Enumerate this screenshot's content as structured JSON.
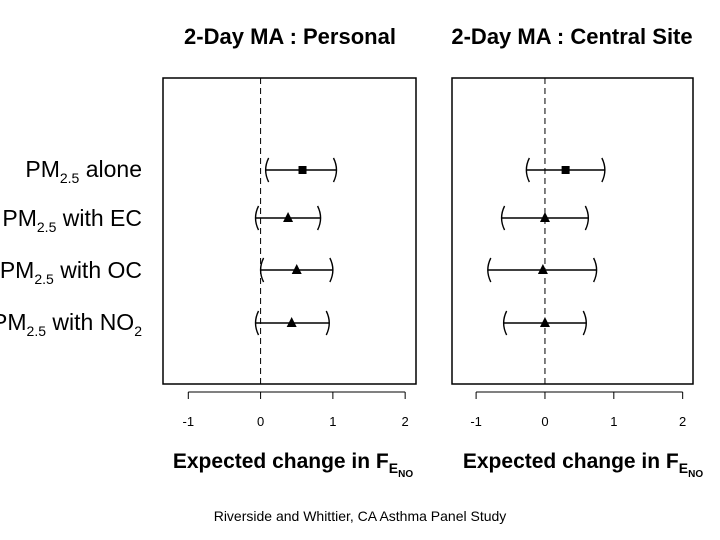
{
  "caption": "Riverside and Whittier, CA Asthma Panel Study",
  "row_labels": [
    {
      "main": "PM",
      "sub": "2.5",
      "rest": " alone",
      "sub2": ""
    },
    {
      "main": "PM",
      "sub": "2.5",
      "rest": " with EC",
      "sub2": ""
    },
    {
      "main": "PM",
      "sub": "2.5",
      "rest": " with OC",
      "sub2": ""
    },
    {
      "main": "PM",
      "sub": "2.5",
      "rest": " with NO",
      "sub2": "2"
    }
  ],
  "chart_data": [
    {
      "type": "forest",
      "title": "2-Day MA : Personal",
      "xlabel": {
        "main": "Expected change in F",
        "sub": "E",
        "subsub": "NO"
      },
      "xlim": [
        -1.35,
        2.15
      ],
      "xticks": [
        -1,
        0,
        1,
        2
      ],
      "reference_line": 0,
      "series": [
        {
          "name": "PM2.5 alone",
          "estimate": 0.58,
          "lower": 0.07,
          "upper": 1.05,
          "marker": "square"
        },
        {
          "name": "PM2.5 with EC",
          "estimate": 0.38,
          "lower": -0.07,
          "upper": 0.83,
          "marker": "triangle"
        },
        {
          "name": "PM2.5 with OC",
          "estimate": 0.5,
          "lower": 0.0,
          "upper": 1.0,
          "marker": "triangle"
        },
        {
          "name": "PM2.5 with NO2",
          "estimate": 0.43,
          "lower": -0.07,
          "upper": 0.95,
          "marker": "triangle"
        }
      ]
    },
    {
      "type": "forest",
      "title": "2-Day MA : Central Site",
      "xlabel": {
        "main": "Expected change in F",
        "sub": "E",
        "subsub": "NO"
      },
      "xlim": [
        -1.35,
        2.15
      ],
      "xticks": [
        -1,
        0,
        1,
        2
      ],
      "reference_line": 0,
      "series": [
        {
          "name": "PM2.5 alone",
          "estimate": 0.3,
          "lower": -0.27,
          "upper": 0.87,
          "marker": "square"
        },
        {
          "name": "PM2.5 with EC",
          "estimate": 0.0,
          "lower": -0.63,
          "upper": 0.63,
          "marker": "triangle"
        },
        {
          "name": "PM2.5 with OC",
          "estimate": -0.03,
          "lower": -0.83,
          "upper": 0.75,
          "marker": "triangle"
        },
        {
          "name": "PM2.5 with NO2",
          "estimate": 0.0,
          "lower": -0.6,
          "upper": 0.6,
          "marker": "triangle"
        }
      ]
    }
  ]
}
